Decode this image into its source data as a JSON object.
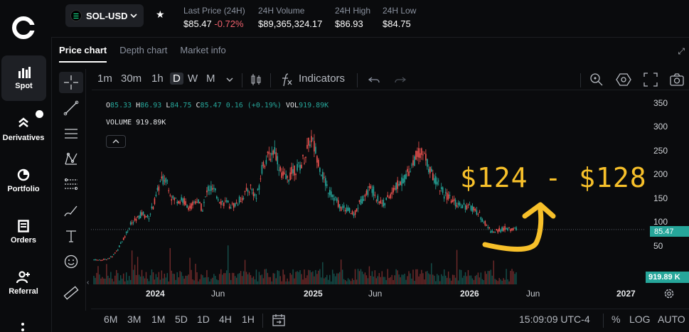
{
  "nav": {
    "items": [
      {
        "label": "Spot",
        "icon": "bar-chart-icon",
        "active": true
      },
      {
        "label": "Derivatives",
        "icon": "derivatives-icon"
      },
      {
        "label": "Portfolio",
        "icon": "pie-chart-icon"
      },
      {
        "label": "Orders",
        "icon": "orders-icon"
      },
      {
        "label": "Referral",
        "icon": "add-user-icon"
      }
    ]
  },
  "header": {
    "pair": "SOL-USD",
    "stats": [
      {
        "label": "Last Price (24H)",
        "value": "$85.47",
        "change": "-0.72%"
      },
      {
        "label": "24H Volume",
        "value": "$89,365,324.17"
      },
      {
        "label": "24H High",
        "value": "$86.93"
      },
      {
        "label": "24H Low",
        "value": "$84.75"
      }
    ]
  },
  "tabs": [
    "Price chart",
    "Depth chart",
    "Market info"
  ],
  "toolbar": {
    "timeframes": [
      "1m",
      "30m",
      "1h",
      "D",
      "W",
      "M"
    ],
    "active_timeframe": "D",
    "indicators_label": "Indicators"
  },
  "legend": {
    "o_label": "O",
    "o": "85.33",
    "h_label": "H",
    "h": "86.93",
    "l_label": "L",
    "l": "84.75",
    "c_label": "C",
    "c": "85.47",
    "change": "0.16 (+0.19%)",
    "vol_label": "VOL",
    "vol": "919.89K",
    "volume_title": "VOLUME",
    "volume_value": "919.89K"
  },
  "annotation": "$124 - $128",
  "price_tag": "85.47",
  "volume_tag": "919.89 K",
  "bottom": {
    "ranges": [
      "6M",
      "3M",
      "1M",
      "5D",
      "1D",
      "4H",
      "1H"
    ],
    "clock": "15:09:09 UTC-4",
    "percent": "%",
    "log": "LOG",
    "auto": "AUTO"
  },
  "colors": {
    "up": "#26a69a",
    "down": "#ef5350",
    "annotation": "#f7c02a",
    "background": "#0a0b0d"
  },
  "chart_data": {
    "type": "candlestick",
    "yticks": [
      50,
      100,
      150,
      200,
      250,
      300,
      350
    ],
    "xticks": [
      "2024",
      "Jun",
      "2025",
      "Jun",
      "2026",
      "Jun",
      "2027"
    ],
    "ylim": [
      0,
      350
    ],
    "current_price": 85.47,
    "series": [
      {
        "name": "SOL-USD",
        "values": [
          [
            0,
            22
          ],
          [
            2,
            21
          ],
          [
            4,
            23
          ],
          [
            6,
            28
          ],
          [
            8,
            45
          ],
          [
            10,
            68
          ],
          [
            12,
            95
          ],
          [
            14,
            105
          ],
          [
            16,
            120
          ],
          [
            18,
            110
          ],
          [
            20,
            140
          ],
          [
            22,
            185
          ],
          [
            24,
            195
          ],
          [
            26,
            150
          ],
          [
            28,
            148
          ],
          [
            30,
            145
          ],
          [
            32,
            130
          ],
          [
            34,
            150
          ],
          [
            36,
            128
          ],
          [
            38,
            175
          ],
          [
            40,
            165
          ],
          [
            42,
            145
          ],
          [
            44,
            140
          ],
          [
            46,
            135
          ],
          [
            48,
            145
          ],
          [
            50,
            160
          ],
          [
            52,
            175
          ],
          [
            54,
            150
          ],
          [
            56,
            225
          ],
          [
            58,
            238
          ],
          [
            60,
            255
          ],
          [
            62,
            205
          ],
          [
            64,
            190
          ],
          [
            66,
            210
          ],
          [
            68,
            215
          ],
          [
            70,
            240
          ],
          [
            72,
            280
          ],
          [
            74,
            240
          ],
          [
            76,
            195
          ],
          [
            78,
            165
          ],
          [
            80,
            150
          ],
          [
            82,
            130
          ],
          [
            84,
            130
          ],
          [
            86,
            115
          ],
          [
            88,
            140
          ],
          [
            90,
            160
          ],
          [
            92,
            175
          ],
          [
            94,
            150
          ],
          [
            96,
            140
          ],
          [
            98,
            155
          ],
          [
            100,
            175
          ],
          [
            102,
            185
          ],
          [
            104,
            205
          ],
          [
            106,
            230
          ],
          [
            108,
            250
          ],
          [
            110,
            235
          ],
          [
            112,
            200
          ],
          [
            114,
            185
          ],
          [
            116,
            160
          ],
          [
            118,
            150
          ],
          [
            120,
            140
          ],
          [
            122,
            138
          ],
          [
            124,
            132
          ],
          [
            126,
            130
          ],
          [
            128,
            115
          ],
          [
            130,
            95
          ],
          [
            132,
            80
          ],
          [
            134,
            83
          ],
          [
            136,
            88
          ],
          [
            138,
            85
          ],
          [
            140,
            87
          ]
        ]
      }
    ]
  }
}
